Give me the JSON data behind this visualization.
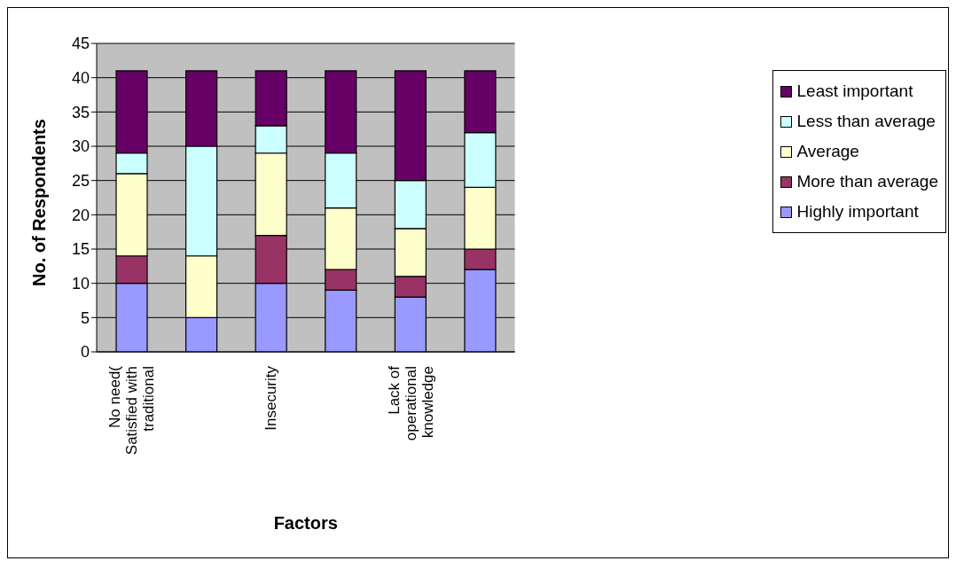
{
  "chart_data": {
    "type": "bar",
    "stacked": true,
    "xlabel": "Factors",
    "ylabel": "No. of Respondents",
    "categories": [
      "No need( Satisfied with traditional",
      null,
      "Insecurity",
      null,
      "Lack of operational knowledge",
      null
    ],
    "series": [
      {
        "name": "Highly important",
        "color": "#9999ff",
        "values": [
          10,
          5,
          10,
          9,
          8,
          12
        ]
      },
      {
        "name": "More than average",
        "color": "#993366",
        "values": [
          4,
          0,
          7,
          3,
          3,
          3
        ]
      },
      {
        "name": "Average",
        "color": "#ffffcc",
        "values": [
          12,
          9,
          12,
          9,
          7,
          9
        ]
      },
      {
        "name": "Less than average",
        "color": "#ccffff",
        "values": [
          3,
          16,
          4,
          8,
          7,
          8
        ]
      },
      {
        "name": "Least important",
        "color": "#660066",
        "values": [
          12,
          11,
          8,
          12,
          16,
          9
        ]
      }
    ],
    "ylim": [
      0,
      45
    ],
    "yticks": [
      0,
      5,
      10,
      15,
      20,
      25,
      30,
      35,
      40,
      45
    ],
    "grid": "y",
    "legend": "right"
  }
}
